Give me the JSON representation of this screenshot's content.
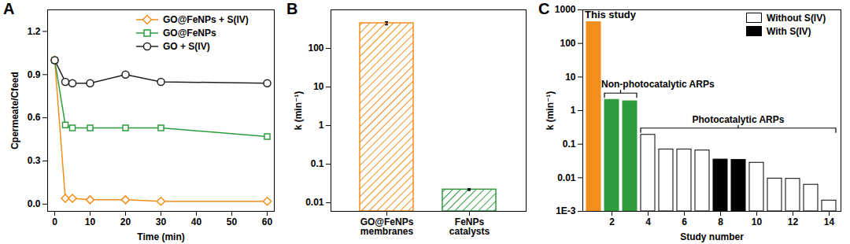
{
  "chart_data": [
    {
      "type": "line",
      "title": "A",
      "x_label": "Time (min)",
      "y_label": "Cpermeate/Cfeed",
      "xlim": [
        -2,
        62
      ],
      "xticks": [
        0,
        10,
        20,
        30,
        40,
        50,
        60
      ],
      "ylim": [
        -0.05,
        1.35
      ],
      "yticks": [
        {
          "value": 0,
          "label": "0.0"
        },
        0.3,
        0.6,
        0.9,
        1.2
      ],
      "legend": "top",
      "series": [
        {
          "name": "GO@FeNPs + S(IV)",
          "color": "#f28e1c",
          "marker": "diamond",
          "x": [
            0,
            3,
            5,
            10,
            20,
            30,
            60
          ],
          "values": [
            1.0,
            0.04,
            0.04,
            0.03,
            0.03,
            0.02,
            0.02
          ]
        },
        {
          "name": "GO@FeNPs",
          "color": "#2e9b3f",
          "marker": "square",
          "x": [
            0,
            3,
            5,
            10,
            20,
            30,
            60
          ],
          "values": [
            1.0,
            0.55,
            0.53,
            0.53,
            0.53,
            0.53,
            0.47
          ]
        },
        {
          "name": "GO + S(IV)",
          "color": "#222222",
          "marker": "circle",
          "x": [
            0,
            3,
            5,
            10,
            20,
            30,
            60
          ],
          "values": [
            1.0,
            0.85,
            0.84,
            0.84,
            0.9,
            0.85,
            0.84
          ]
        }
      ]
    },
    {
      "type": "bar",
      "title": "B",
      "y_label": "k (min⁻¹)",
      "categories": [
        "GO@FeNPs\nmembranes",
        "FeNPs\ncatalysts"
      ],
      "values": [
        450,
        0.022
      ],
      "errors": [
        40,
        0.001
      ],
      "colors": [
        "#f28e1c",
        "#2e9b3f"
      ],
      "log": "y",
      "ylim": [
        0.006,
        1000
      ],
      "yticks": [
        0.01,
        0.1,
        1,
        10,
        100
      ]
    },
    {
      "type": "bar",
      "title": "C",
      "x_label": "Study number",
      "y_label": "k (min⁻¹)",
      "x": [
        1,
        2,
        3,
        4,
        5,
        6,
        7,
        8,
        9,
        10,
        11,
        12,
        13,
        14
      ],
      "xticks": [
        2,
        4,
        6,
        8,
        10,
        12,
        14
      ],
      "values": [
        430,
        2.1,
        1.9,
        0.19,
        0.07,
        0.07,
        0.065,
        0.035,
        0.034,
        0.028,
        0.0095,
        0.0093,
        0.0062,
        0.0021
      ],
      "colors": [
        "#f28e1c",
        "#2e9b3f",
        "#2e9b3f",
        "#ffffff",
        "#ffffff",
        "#ffffff",
        "#ffffff",
        "#000000",
        "#000000",
        "#ffffff",
        "#ffffff",
        "#ffffff",
        "#ffffff",
        "#ffffff"
      ],
      "log": "y",
      "ylim": [
        0.001,
        1000
      ],
      "yticks": [
        {
          "value": 0.001,
          "label": "1E-3"
        },
        0.01,
        0.1,
        1,
        10,
        100,
        1000
      ],
      "legend": "top-right",
      "legend_entries": [
        {
          "name": "Without S(IV)",
          "color": "#ffffff"
        },
        {
          "name": "With S(IV)",
          "color": "#000000"
        }
      ],
      "annotations": [
        "This study"
      ],
      "groups": [
        {
          "label": "Non-photocatalytic ARPs",
          "studies": [
            2,
            3
          ]
        },
        {
          "label": "Photocatalytic ARPs",
          "studies": [
            4,
            14
          ]
        }
      ]
    }
  ]
}
